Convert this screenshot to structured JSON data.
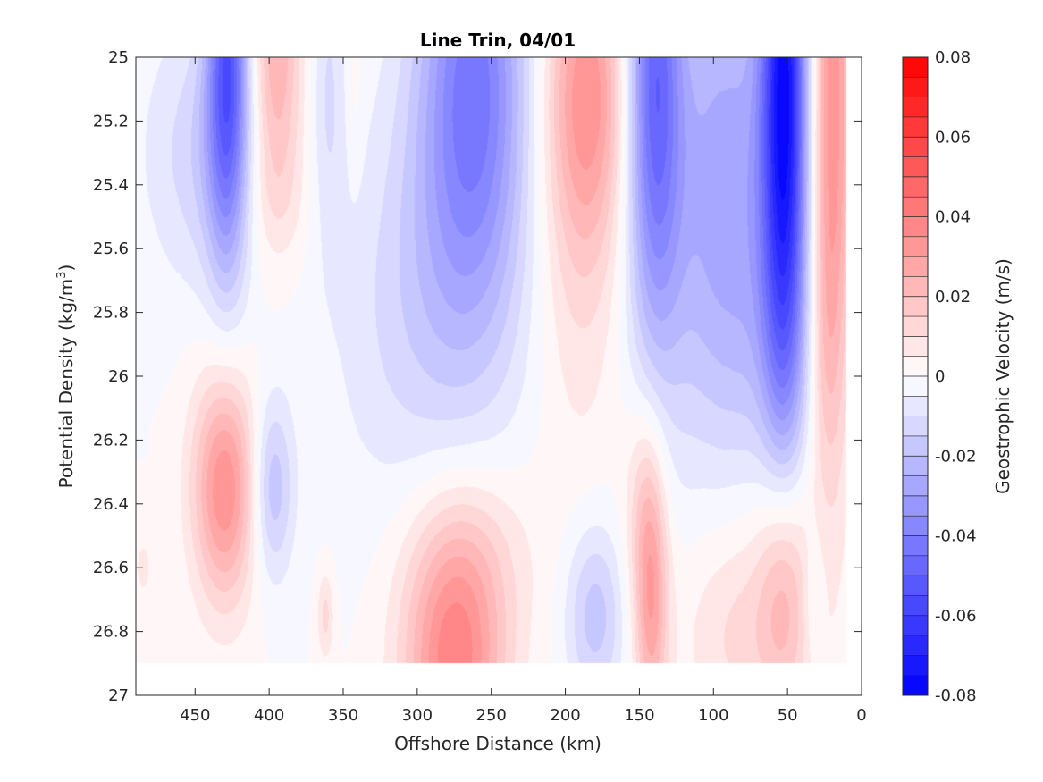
{
  "chart_data": {
    "type": "heatmap",
    "title": "Line Trin, 04/01",
    "xlabel": "Offshore Distance (km)",
    "ylabel": "Potential Density (kg/m^3)",
    "ylabel_main": "Potential Density (kg/m",
    "ylabel_sup": "3",
    "ylabel_end": ")",
    "colorbar_label": "Geostrophic Velocity (m/s)",
    "xlim": [
      490,
      0
    ],
    "ylim": [
      25,
      27
    ],
    "x_reversed": true,
    "y_reversed": true,
    "xticks": [
      "450",
      "400",
      "350",
      "300",
      "250",
      "200",
      "150",
      "100",
      "50",
      "0"
    ],
    "xtick_values": [
      450,
      400,
      350,
      300,
      250,
      200,
      150,
      100,
      50,
      0
    ],
    "yticks": [
      "25",
      "25.2",
      "25.4",
      "25.6",
      "25.8",
      "26",
      "26.2",
      "26.4",
      "26.6",
      "26.8",
      "27"
    ],
    "ytick_values": [
      25,
      25.2,
      25.4,
      25.6,
      25.8,
      26,
      26.2,
      26.4,
      26.6,
      26.8,
      27
    ],
    "data_extent": {
      "x": [
        490,
        10
      ],
      "y": [
        25,
        26.9
      ]
    },
    "clim": [
      -0.08,
      0.08
    ],
    "colorbar_ticks": [
      "0.08",
      "0.06",
      "0.04",
      "0.02",
      "0",
      "-0.02",
      "-0.04",
      "-0.06",
      "-0.08"
    ],
    "colorbar_tick_values": [
      0.08,
      0.06,
      0.04,
      0.02,
      0,
      -0.02,
      -0.04,
      -0.06,
      -0.08
    ],
    "colormap": {
      "negative": "#0000ff",
      "zero": "#ffffff",
      "positive": "#ff0000",
      "levels": 32
    },
    "features": [
      {
        "x": 428,
        "y": 25.0,
        "sx": 10,
        "sy": 0.45,
        "v": -0.05
      },
      {
        "x": 440,
        "y": 25.3,
        "sx": 22,
        "sy": 0.3,
        "v": -0.012
      },
      {
        "x": 470,
        "y": 25.3,
        "sx": 22,
        "sy": 0.3,
        "v": -0.004
      },
      {
        "x": 395,
        "y": 25.0,
        "sx": 12,
        "sy": 0.3,
        "v": 0.025
      },
      {
        "x": 395,
        "y": 25.45,
        "sx": 16,
        "sy": 0.15,
        "v": 0.006
      },
      {
        "x": 360,
        "y": 25.1,
        "sx": 8,
        "sy": 0.35,
        "v": -0.01
      },
      {
        "x": 342,
        "y": 25.1,
        "sx": 4,
        "sy": 0.2,
        "v": 0.004
      },
      {
        "x": 262,
        "y": 25.05,
        "sx": 26,
        "sy": 0.5,
        "v": -0.04
      },
      {
        "x": 280,
        "y": 25.7,
        "sx": 40,
        "sy": 0.45,
        "v": -0.012
      },
      {
        "x": 320,
        "y": 25.9,
        "sx": 35,
        "sy": 0.45,
        "v": -0.004
      },
      {
        "x": 185,
        "y": 25.1,
        "sx": 20,
        "sy": 0.35,
        "v": 0.03
      },
      {
        "x": 190,
        "y": 25.6,
        "sx": 22,
        "sy": 0.5,
        "v": 0.01
      },
      {
        "x": 140,
        "y": 25.05,
        "sx": 13,
        "sy": 0.55,
        "v": -0.045
      },
      {
        "x": 128,
        "y": 25.7,
        "sx": 30,
        "sy": 0.5,
        "v": -0.006
      },
      {
        "x": 90,
        "y": 25.3,
        "sx": 28,
        "sy": 0.55,
        "v": -0.025
      },
      {
        "x": 52,
        "y": 25.1,
        "sx": 11,
        "sy": 0.75,
        "v": -0.07
      },
      {
        "x": 68,
        "y": 25.9,
        "sx": 30,
        "sy": 0.3,
        "v": -0.008
      },
      {
        "x": 20,
        "y": 25.15,
        "sx": 10,
        "sy": 0.75,
        "v": 0.035
      },
      {
        "x": 25,
        "y": 25.9,
        "sx": 8,
        "sy": 0.3,
        "v": 0.008
      },
      {
        "x": 430,
        "y": 26.35,
        "sx": 15,
        "sy": 0.25,
        "v": 0.035
      },
      {
        "x": 398,
        "y": 26.35,
        "sx": 10,
        "sy": 0.2,
        "v": -0.02
      },
      {
        "x": 485,
        "y": 26.6,
        "sx": 6,
        "sy": 0.1,
        "v": 0.006
      },
      {
        "x": 362,
        "y": 26.75,
        "sx": 4,
        "sy": 0.1,
        "v": 0.012
      },
      {
        "x": 275,
        "y": 26.9,
        "sx": 24,
        "sy": 0.3,
        "v": 0.038
      },
      {
        "x": 262,
        "y": 26.55,
        "sx": 30,
        "sy": 0.2,
        "v": 0.008
      },
      {
        "x": 180,
        "y": 26.75,
        "sx": 14,
        "sy": 0.2,
        "v": -0.018
      },
      {
        "x": 142,
        "y": 26.7,
        "sx": 8,
        "sy": 0.3,
        "v": 0.028
      },
      {
        "x": 148,
        "y": 26.4,
        "sx": 10,
        "sy": 0.25,
        "v": 0.01
      },
      {
        "x": 80,
        "y": 26.8,
        "sx": 28,
        "sy": 0.25,
        "v": 0.012
      },
      {
        "x": 52,
        "y": 26.65,
        "sx": 12,
        "sy": 0.3,
        "v": 0.022
      },
      {
        "x": 32,
        "y": 26.7,
        "sx": 5,
        "sy": 0.15,
        "v": -0.008
      }
    ]
  }
}
